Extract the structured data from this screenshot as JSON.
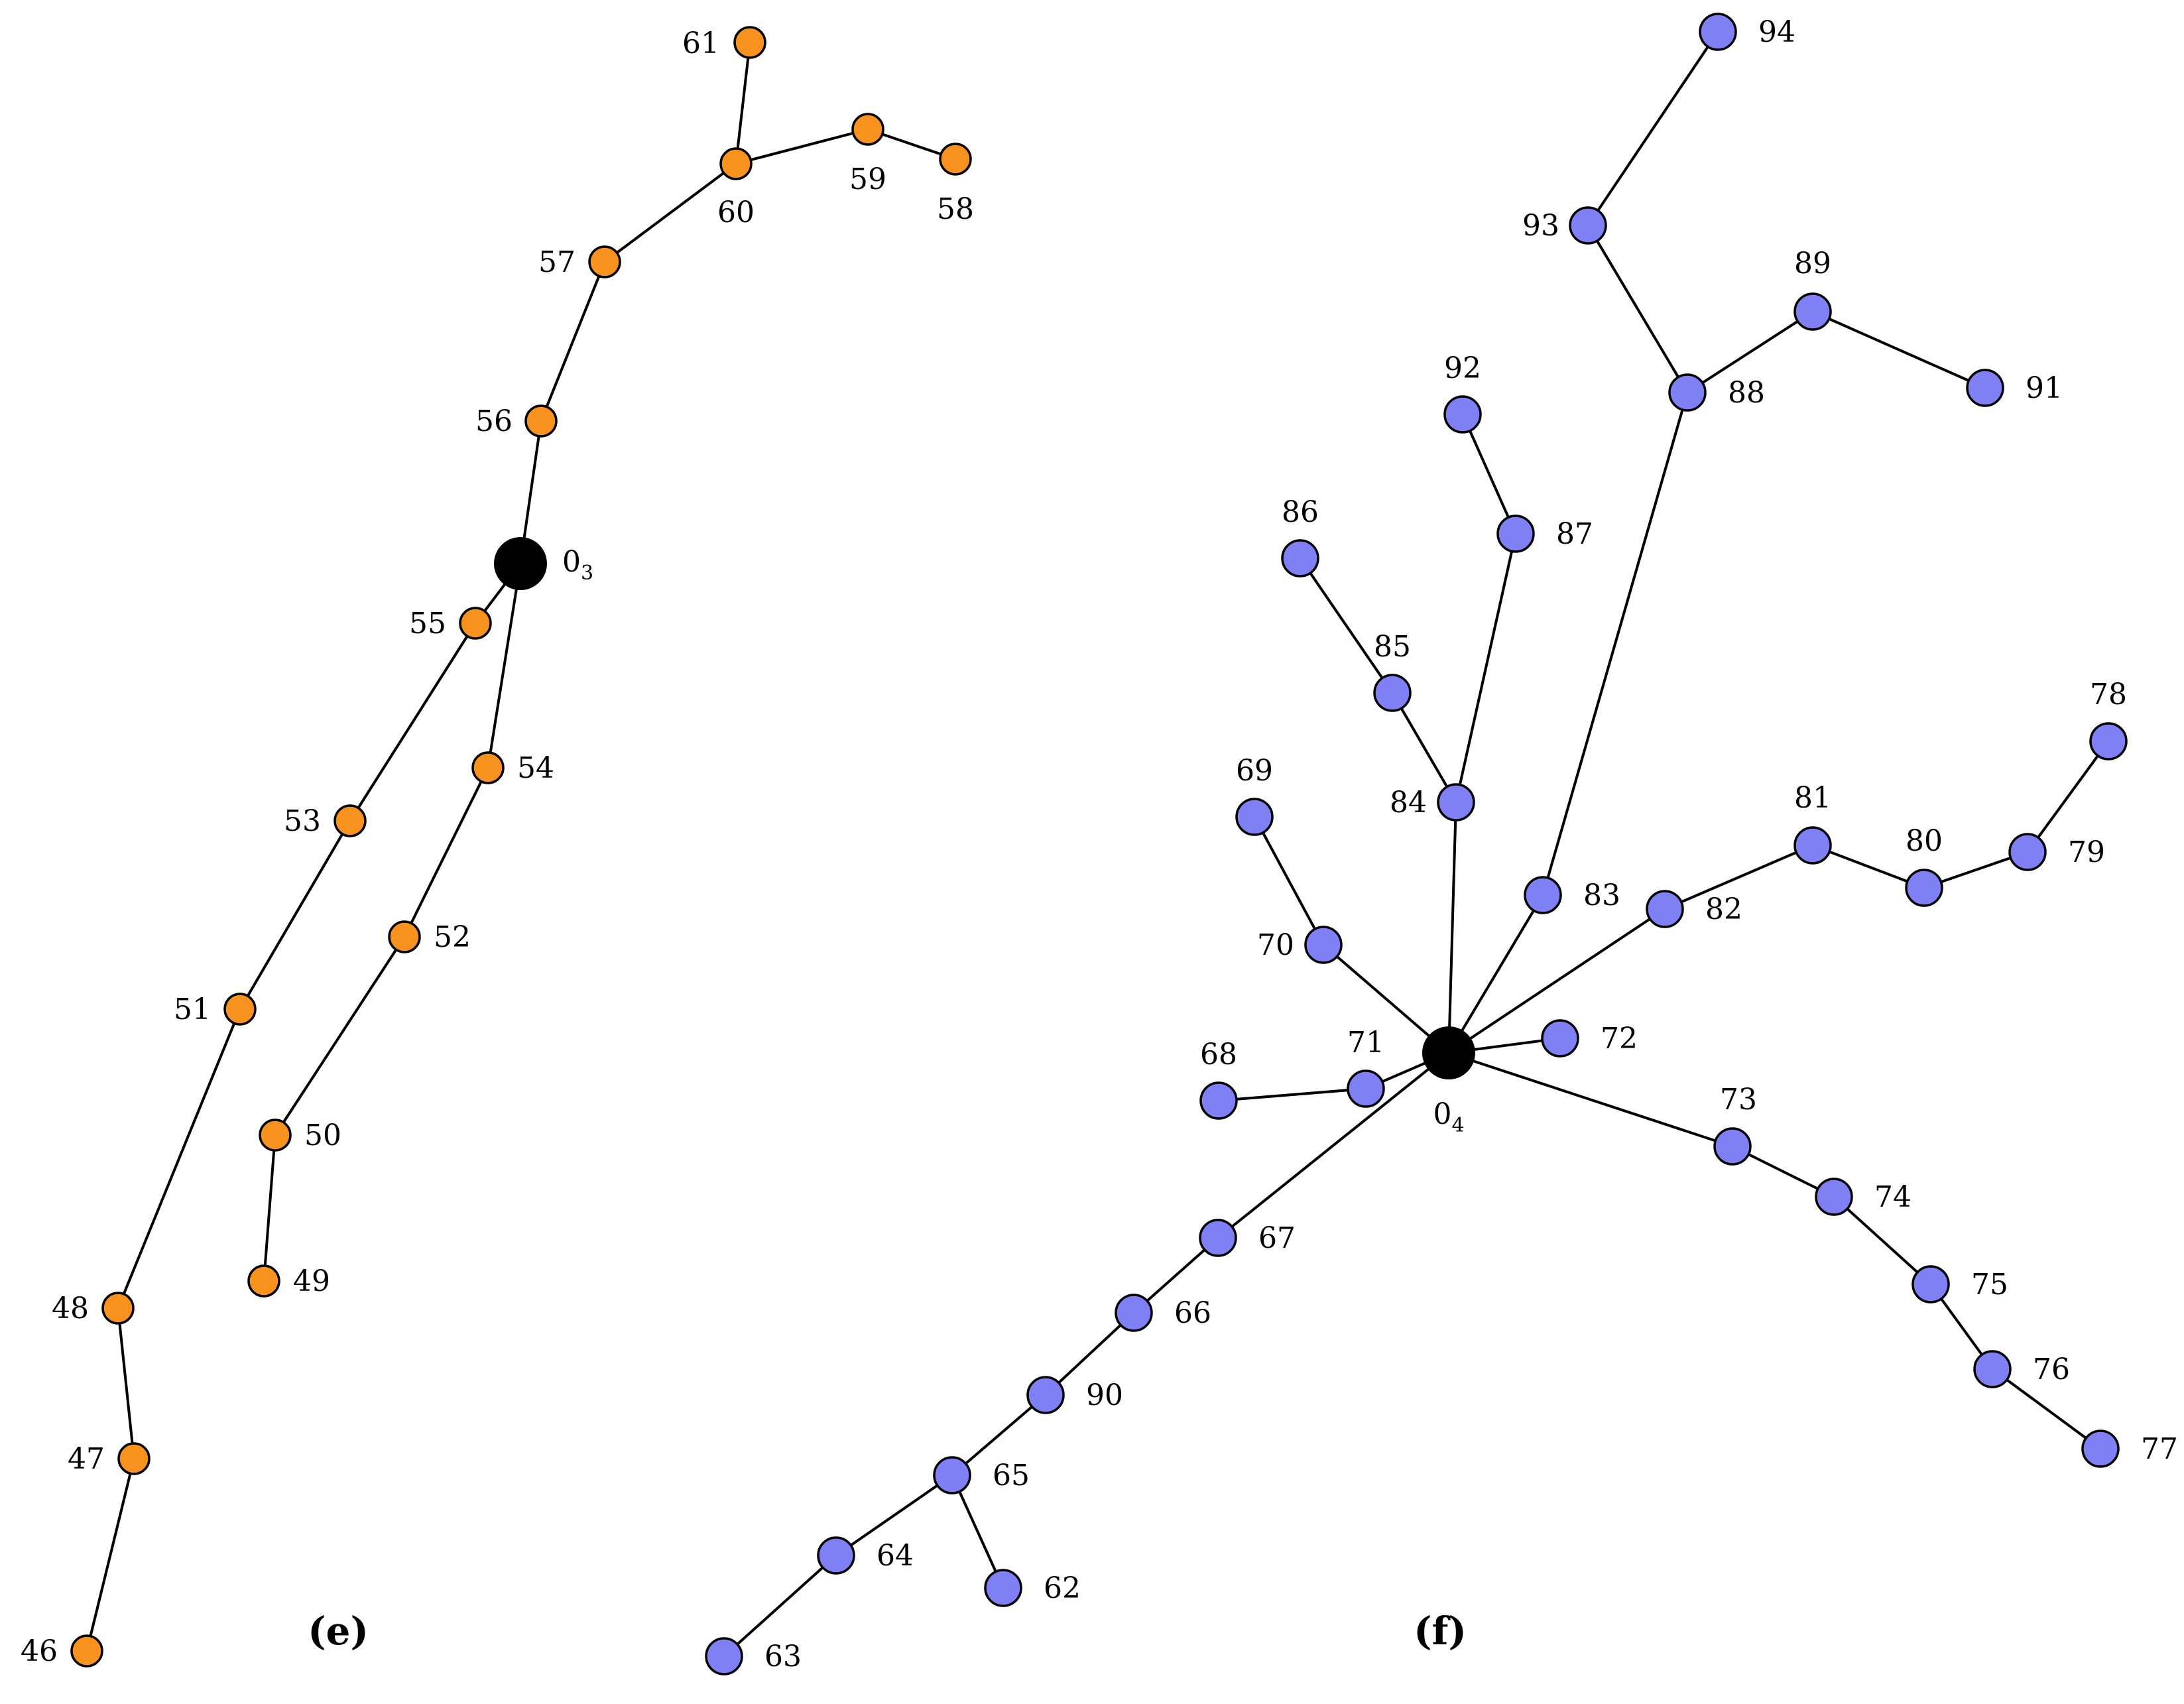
{
  "colors": {
    "panel_e": "#F7921E",
    "panel_f": "#8080F5",
    "root": "#000000",
    "edge": "#000000"
  },
  "panels": [
    {
      "id": "e",
      "caption": "(e)",
      "color": "#F7921E",
      "root": {
        "id": "0_3",
        "label": "0",
        "subscript": "3"
      },
      "nodes": [
        "46",
        "47",
        "48",
        "49",
        "50",
        "51",
        "52",
        "53",
        "54",
        "55",
        "56",
        "57",
        "58",
        "59",
        "60",
        "61"
      ],
      "edges": [
        [
          "0_3",
          "56"
        ],
        [
          "56",
          "57"
        ],
        [
          "57",
          "60"
        ],
        [
          "60",
          "61"
        ],
        [
          "60",
          "59"
        ],
        [
          "59",
          "58"
        ],
        [
          "0_3",
          "55"
        ],
        [
          "55",
          "53"
        ],
        [
          "53",
          "51"
        ],
        [
          "51",
          "48"
        ],
        [
          "48",
          "47"
        ],
        [
          "47",
          "46"
        ],
        [
          "0_3",
          "54"
        ],
        [
          "54",
          "52"
        ],
        [
          "52",
          "50"
        ],
        [
          "50",
          "49"
        ]
      ]
    },
    {
      "id": "f",
      "caption": "(f)",
      "color": "#8080F5",
      "root": {
        "id": "0_4",
        "label": "0",
        "subscript": "4"
      },
      "nodes": [
        "62",
        "63",
        "64",
        "65",
        "66",
        "67",
        "68",
        "69",
        "70",
        "71",
        "72",
        "73",
        "74",
        "75",
        "76",
        "77",
        "78",
        "79",
        "80",
        "81",
        "82",
        "83",
        "84",
        "85",
        "86",
        "87",
        "88",
        "89",
        "90",
        "91",
        "92",
        "93",
        "94"
      ],
      "edges": [
        [
          "0_4",
          "83"
        ],
        [
          "83",
          "88"
        ],
        [
          "88",
          "93"
        ],
        [
          "93",
          "94"
        ],
        [
          "88",
          "89"
        ],
        [
          "89",
          "91"
        ],
        [
          "0_4",
          "84"
        ],
        [
          "84",
          "87"
        ],
        [
          "87",
          "92"
        ],
        [
          "84",
          "85"
        ],
        [
          "85",
          "86"
        ],
        [
          "0_4",
          "70"
        ],
        [
          "70",
          "69"
        ],
        [
          "0_4",
          "71"
        ],
        [
          "71",
          "68"
        ],
        [
          "0_4",
          "72"
        ],
        [
          "0_4",
          "82"
        ],
        [
          "82",
          "81"
        ],
        [
          "81",
          "80"
        ],
        [
          "80",
          "79"
        ],
        [
          "79",
          "78"
        ],
        [
          "0_4",
          "73"
        ],
        [
          "73",
          "74"
        ],
        [
          "74",
          "75"
        ],
        [
          "75",
          "76"
        ],
        [
          "76",
          "77"
        ],
        [
          "0_4",
          "67"
        ],
        [
          "67",
          "66"
        ],
        [
          "66",
          "90"
        ],
        [
          "90",
          "65"
        ],
        [
          "65",
          "64"
        ],
        [
          "64",
          "63"
        ],
        [
          "65",
          "62"
        ]
      ]
    }
  ]
}
